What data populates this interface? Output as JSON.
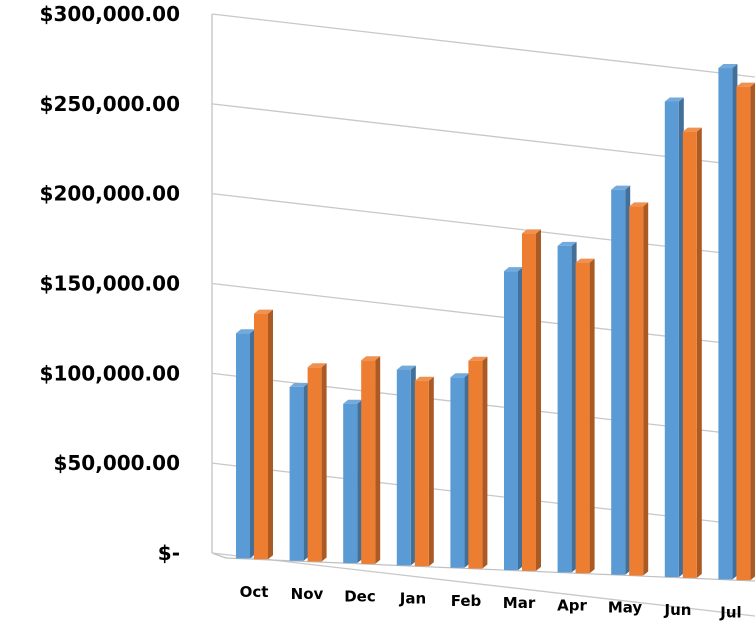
{
  "chart_data": {
    "type": "bar",
    "style": "3d clustered column",
    "categories": [
      "Oct",
      "Nov",
      "Dec",
      "Jan",
      "Feb",
      "Mar",
      "Apr",
      "May",
      "Jun",
      "Jul"
    ],
    "series": [
      {
        "color": "#5B9BD5",
        "values": [
          127000,
          97000,
          88000,
          107000,
          103000,
          160000,
          173000,
          202000,
          247000,
          263000
        ]
      },
      {
        "color": "#ED7D31",
        "values": [
          138000,
          108000,
          112000,
          101000,
          112000,
          180000,
          164000,
          193000,
          231000,
          253000
        ]
      }
    ],
    "y_ticks": [
      {
        "value": 300000,
        "label": "$300,000.00"
      },
      {
        "value": 250000,
        "label": "$250,000.00"
      },
      {
        "value": 200000,
        "label": "$200,000.00"
      },
      {
        "value": 150000,
        "label": "$150,000.00"
      },
      {
        "value": 100000,
        "label": "$100,000.00"
      },
      {
        "value": 50000,
        "label": "$50,000.00"
      },
      {
        "value": 0,
        "label": "$-"
      }
    ],
    "ylim": [
      0,
      300000
    ],
    "grid": true,
    "title": "",
    "xlabel": "",
    "ylabel": ""
  }
}
